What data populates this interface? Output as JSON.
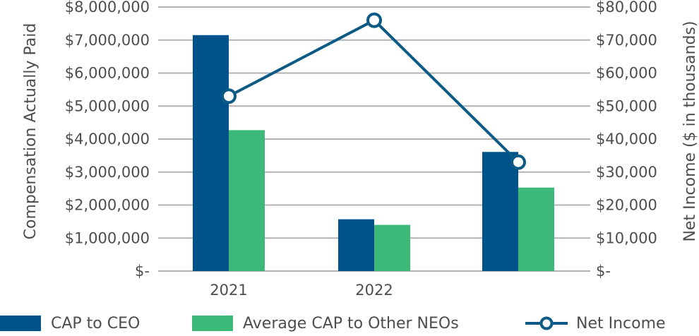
{
  "chart_data": {
    "type": "bar",
    "categories": [
      "2021",
      "2022",
      ""
    ],
    "series": [
      {
        "name": "CAP to CEO",
        "type": "bar",
        "axis": "left",
        "color": "#00538a",
        "values": [
          7150000,
          1570000,
          3610000
        ]
      },
      {
        "name": "Average CAP to Other NEOs",
        "type": "bar",
        "axis": "left",
        "color": "#3cb878",
        "values": [
          4270000,
          1400000,
          2530000
        ]
      },
      {
        "name": "Net Income",
        "type": "line",
        "axis": "right",
        "color": "#0b5b86",
        "values": [
          53000,
          76000,
          33000
        ]
      }
    ],
    "ylabel": "Compensation Actually Paid",
    "y2label": "Net Income ($ in thousands)",
    "ylim": [
      0,
      8000000
    ],
    "y2lim": [
      0,
      80000
    ],
    "yticks": [
      "$-",
      "$1,000,000",
      "$2,000,000",
      "$3,000,000",
      "$4,000,000",
      "$5,000,000",
      "$6,000,000",
      "$7,000,000",
      "$8,000,000"
    ],
    "y2ticks": [
      "$-",
      "$10,000",
      "$20,000",
      "$30,000",
      "$40,000",
      "$50,000",
      "$60,000",
      "$70,000",
      "$80,000"
    ],
    "grid": true,
    "legend_position": "bottom"
  }
}
